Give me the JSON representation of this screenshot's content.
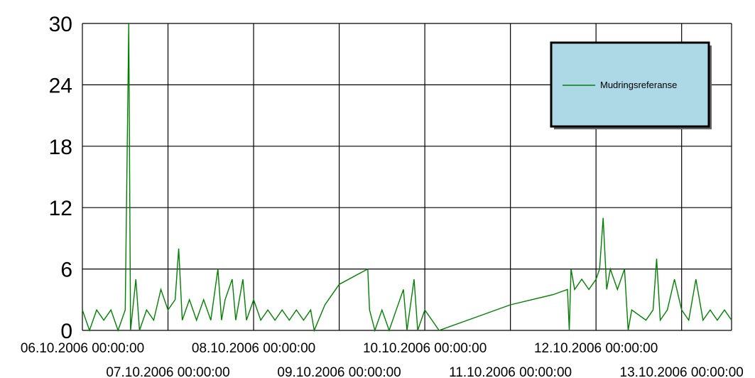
{
  "chart_data": {
    "type": "line",
    "title": "",
    "xlabel": "",
    "ylabel": "",
    "ylim": [
      0,
      30
    ],
    "yticks": [
      "0",
      "6",
      "12",
      "18",
      "24",
      "30"
    ],
    "xlim": [
      "06.10.2006 00:00:00",
      "13.10.2006 14:00:00"
    ],
    "xticks": [
      "06.10.2006 00:00:00",
      "07.10.2006 00:00:00",
      "08.10.2006 00:00:00",
      "09.10.2006 00:00:00",
      "10.10.2006 00:00:00",
      "11.10.2006 00:00:00",
      "12.10.2006 00:00:00",
      "13.10.2006 00:00:00"
    ],
    "grid": true,
    "legend_position": "top-right",
    "colors": {
      "series": "#008000",
      "legend_bg": "#add8e6",
      "grid": "#000000"
    },
    "series": [
      {
        "name": "Mudringsreferanse",
        "points": [
          [
            "06.10.2006 00:00",
            2
          ],
          [
            "06.10.2006 02:00",
            0
          ],
          [
            "06.10.2006 04:00",
            2
          ],
          [
            "06.10.2006 06:00",
            1
          ],
          [
            "06.10.2006 08:00",
            2
          ],
          [
            "06.10.2006 10:00",
            0
          ],
          [
            "06.10.2006 12:00",
            2
          ],
          [
            "06.10.2006 13:00",
            30
          ],
          [
            "06.10.2006 13:30",
            0
          ],
          [
            "06.10.2006 15:00",
            5
          ],
          [
            "06.10.2006 16:00",
            0
          ],
          [
            "06.10.2006 18:00",
            2
          ],
          [
            "06.10.2006 20:00",
            1
          ],
          [
            "06.10.2006 22:00",
            4
          ],
          [
            "07.10.2006 00:00",
            2
          ],
          [
            "07.10.2006 02:00",
            3
          ],
          [
            "07.10.2006 03:00",
            8
          ],
          [
            "07.10.2006 04:00",
            1
          ],
          [
            "07.10.2006 06:00",
            3
          ],
          [
            "07.10.2006 08:00",
            1
          ],
          [
            "07.10.2006 10:00",
            3
          ],
          [
            "07.10.2006 12:00",
            1
          ],
          [
            "07.10.2006 14:00",
            6
          ],
          [
            "07.10.2006 15:00",
            1
          ],
          [
            "07.10.2006 16:00",
            3
          ],
          [
            "07.10.2006 18:00",
            5
          ],
          [
            "07.10.2006 19:00",
            1
          ],
          [
            "07.10.2006 21:00",
            5
          ],
          [
            "07.10.2006 22:00",
            1
          ],
          [
            "08.10.2006 00:00",
            3
          ],
          [
            "08.10.2006 02:00",
            1
          ],
          [
            "08.10.2006 04:00",
            2
          ],
          [
            "08.10.2006 06:00",
            1
          ],
          [
            "08.10.2006 08:00",
            2
          ],
          [
            "08.10.2006 10:00",
            1
          ],
          [
            "08.10.2006 12:00",
            2
          ],
          [
            "08.10.2006 14:00",
            1
          ],
          [
            "08.10.2006 16:00",
            2
          ],
          [
            "08.10.2006 17:00",
            0
          ],
          [
            "08.10.2006 20:00",
            2.5
          ],
          [
            "09.10.2006 00:00",
            4.5
          ],
          [
            "09.10.2006 08:00",
            6
          ],
          [
            "09.10.2006 08:30",
            2
          ],
          [
            "09.10.2006 10:00",
            0
          ],
          [
            "09.10.2006 12:00",
            2
          ],
          [
            "09.10.2006 14:00",
            0
          ],
          [
            "09.10.2006 16:00",
            2
          ],
          [
            "09.10.2006 18:00",
            4
          ],
          [
            "09.10.2006 19:00",
            0
          ],
          [
            "09.10.2006 21:00",
            5
          ],
          [
            "09.10.2006 22:00",
            0
          ],
          [
            "10.10.2006 00:00",
            2
          ],
          [
            "10.10.2006 02:00",
            1
          ],
          [
            "10.10.2006 04:00",
            0
          ],
          [
            "10.10.2006 12:00",
            1
          ],
          [
            "11.10.2006 00:00",
            2.5
          ],
          [
            "11.10.2006 12:00",
            3.5
          ],
          [
            "11.10.2006 16:00",
            4
          ],
          [
            "11.10.2006 16:30",
            0
          ],
          [
            "11.10.2006 17:00",
            6
          ],
          [
            "11.10.2006 18:00",
            4
          ],
          [
            "11.10.2006 20:00",
            5
          ],
          [
            "11.10.2006 22:00",
            4
          ],
          [
            "12.10.2006 00:00",
            5
          ],
          [
            "12.10.2006 01:00",
            6
          ],
          [
            "12.10.2006 02:00",
            11
          ],
          [
            "12.10.2006 03:00",
            4
          ],
          [
            "12.10.2006 04:00",
            6
          ],
          [
            "12.10.2006 06:00",
            4
          ],
          [
            "12.10.2006 08:00",
            6
          ],
          [
            "12.10.2006 09:00",
            0
          ],
          [
            "12.10.2006 10:00",
            2
          ],
          [
            "12.10.2006 14:00",
            1
          ],
          [
            "12.10.2006 16:00",
            2
          ],
          [
            "12.10.2006 17:00",
            7
          ],
          [
            "12.10.2006 18:00",
            1
          ],
          [
            "12.10.2006 20:00",
            2
          ],
          [
            "12.10.2006 22:00",
            5
          ],
          [
            "13.10.2006 00:00",
            2
          ],
          [
            "13.10.2006 02:00",
            1
          ],
          [
            "13.10.2006 04:00",
            5
          ],
          [
            "13.10.2006 06:00",
            1
          ],
          [
            "13.10.2006 08:00",
            2
          ],
          [
            "13.10.2006 10:00",
            1
          ],
          [
            "13.10.2006 12:00",
            2
          ],
          [
            "13.10.2006 14:00",
            1
          ]
        ]
      }
    ]
  }
}
